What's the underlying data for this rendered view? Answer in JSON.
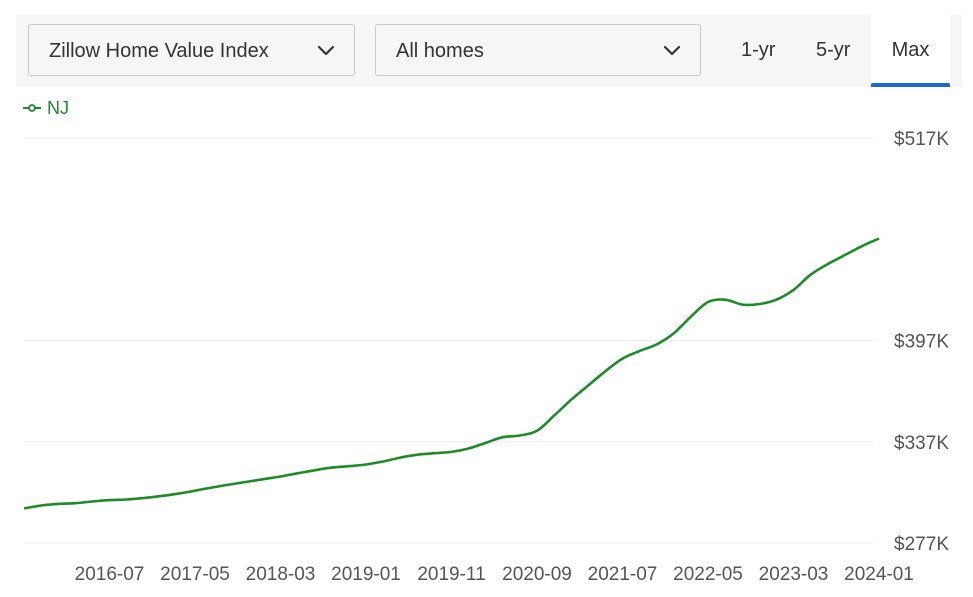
{
  "toolbar": {
    "metric_dropdown": {
      "label": "Zillow Home Value Index",
      "icon": "chevron-down-icon"
    },
    "homes_dropdown": {
      "label": "All homes",
      "icon": "chevron-down-icon"
    },
    "range_tabs": [
      {
        "label": "1-yr",
        "active": false
      },
      {
        "label": "5-yr",
        "active": false
      },
      {
        "label": "Max",
        "active": true
      }
    ],
    "accent_color": "#1b66d6"
  },
  "legend": {
    "label": "NJ",
    "color": "#1f8a2a",
    "icon": "line-marker-icon"
  },
  "chart_data": {
    "type": "line",
    "title": "",
    "xlabel": "",
    "ylabel": "",
    "x_ticks": [
      "2016-07",
      "2017-05",
      "2018-03",
      "2019-01",
      "2019-11",
      "2020-09",
      "2021-07",
      "2022-05",
      "2023-03",
      "2024-01"
    ],
    "y_ticks": [
      {
        "value": 277,
        "label": "$277K"
      },
      {
        "value": 337,
        "label": "$337K"
      },
      {
        "value": 397,
        "label": "$397K"
      },
      {
        "value": 517,
        "label": "$517K"
      }
    ],
    "ylim": [
      277,
      517
    ],
    "xlim": [
      "2015-09",
      "2024-01"
    ],
    "grid": true,
    "series": [
      {
        "name": "NJ",
        "color": "#1f8a2a",
        "x": [
          "2015-09",
          "2015-11",
          "2016-01",
          "2016-03",
          "2016-05",
          "2016-07",
          "2016-09",
          "2016-11",
          "2017-01",
          "2017-03",
          "2017-05",
          "2017-07",
          "2017-09",
          "2017-11",
          "2018-01",
          "2018-03",
          "2018-05",
          "2018-07",
          "2018-09",
          "2018-11",
          "2019-01",
          "2019-03",
          "2019-05",
          "2019-07",
          "2019-09",
          "2019-11",
          "2020-01",
          "2020-03",
          "2020-05",
          "2020-07",
          "2020-09",
          "2020-11",
          "2021-01",
          "2021-03",
          "2021-05",
          "2021-07",
          "2021-09",
          "2021-11",
          "2022-01",
          "2022-03",
          "2022-05",
          "2022-07",
          "2022-09",
          "2022-11",
          "2023-01",
          "2023-03",
          "2023-05",
          "2023-07",
          "2023-09",
          "2023-11",
          "2024-01"
        ],
        "values": [
          297.5,
          299.2,
          300.2,
          300.6,
          301.6,
          302.4,
          302.8,
          303.6,
          304.8,
          306.2,
          308.0,
          309.9,
          311.6,
          313.2,
          314.8,
          316.4,
          318.3,
          320.1,
          321.7,
          322.5,
          323.5,
          325.3,
          327.6,
          329.3,
          330.2,
          331.0,
          333.0,
          336.3,
          339.7,
          340.7,
          343.5,
          352.5,
          361.9,
          370.4,
          378.8,
          386.3,
          390.8,
          394.7,
          401.3,
          411.1,
          419.8,
          421.2,
          418.3,
          418.6,
          421.2,
          427.0,
          436.0,
          442.3,
          447.6,
          452.9,
          457.4
        ]
      }
    ]
  }
}
